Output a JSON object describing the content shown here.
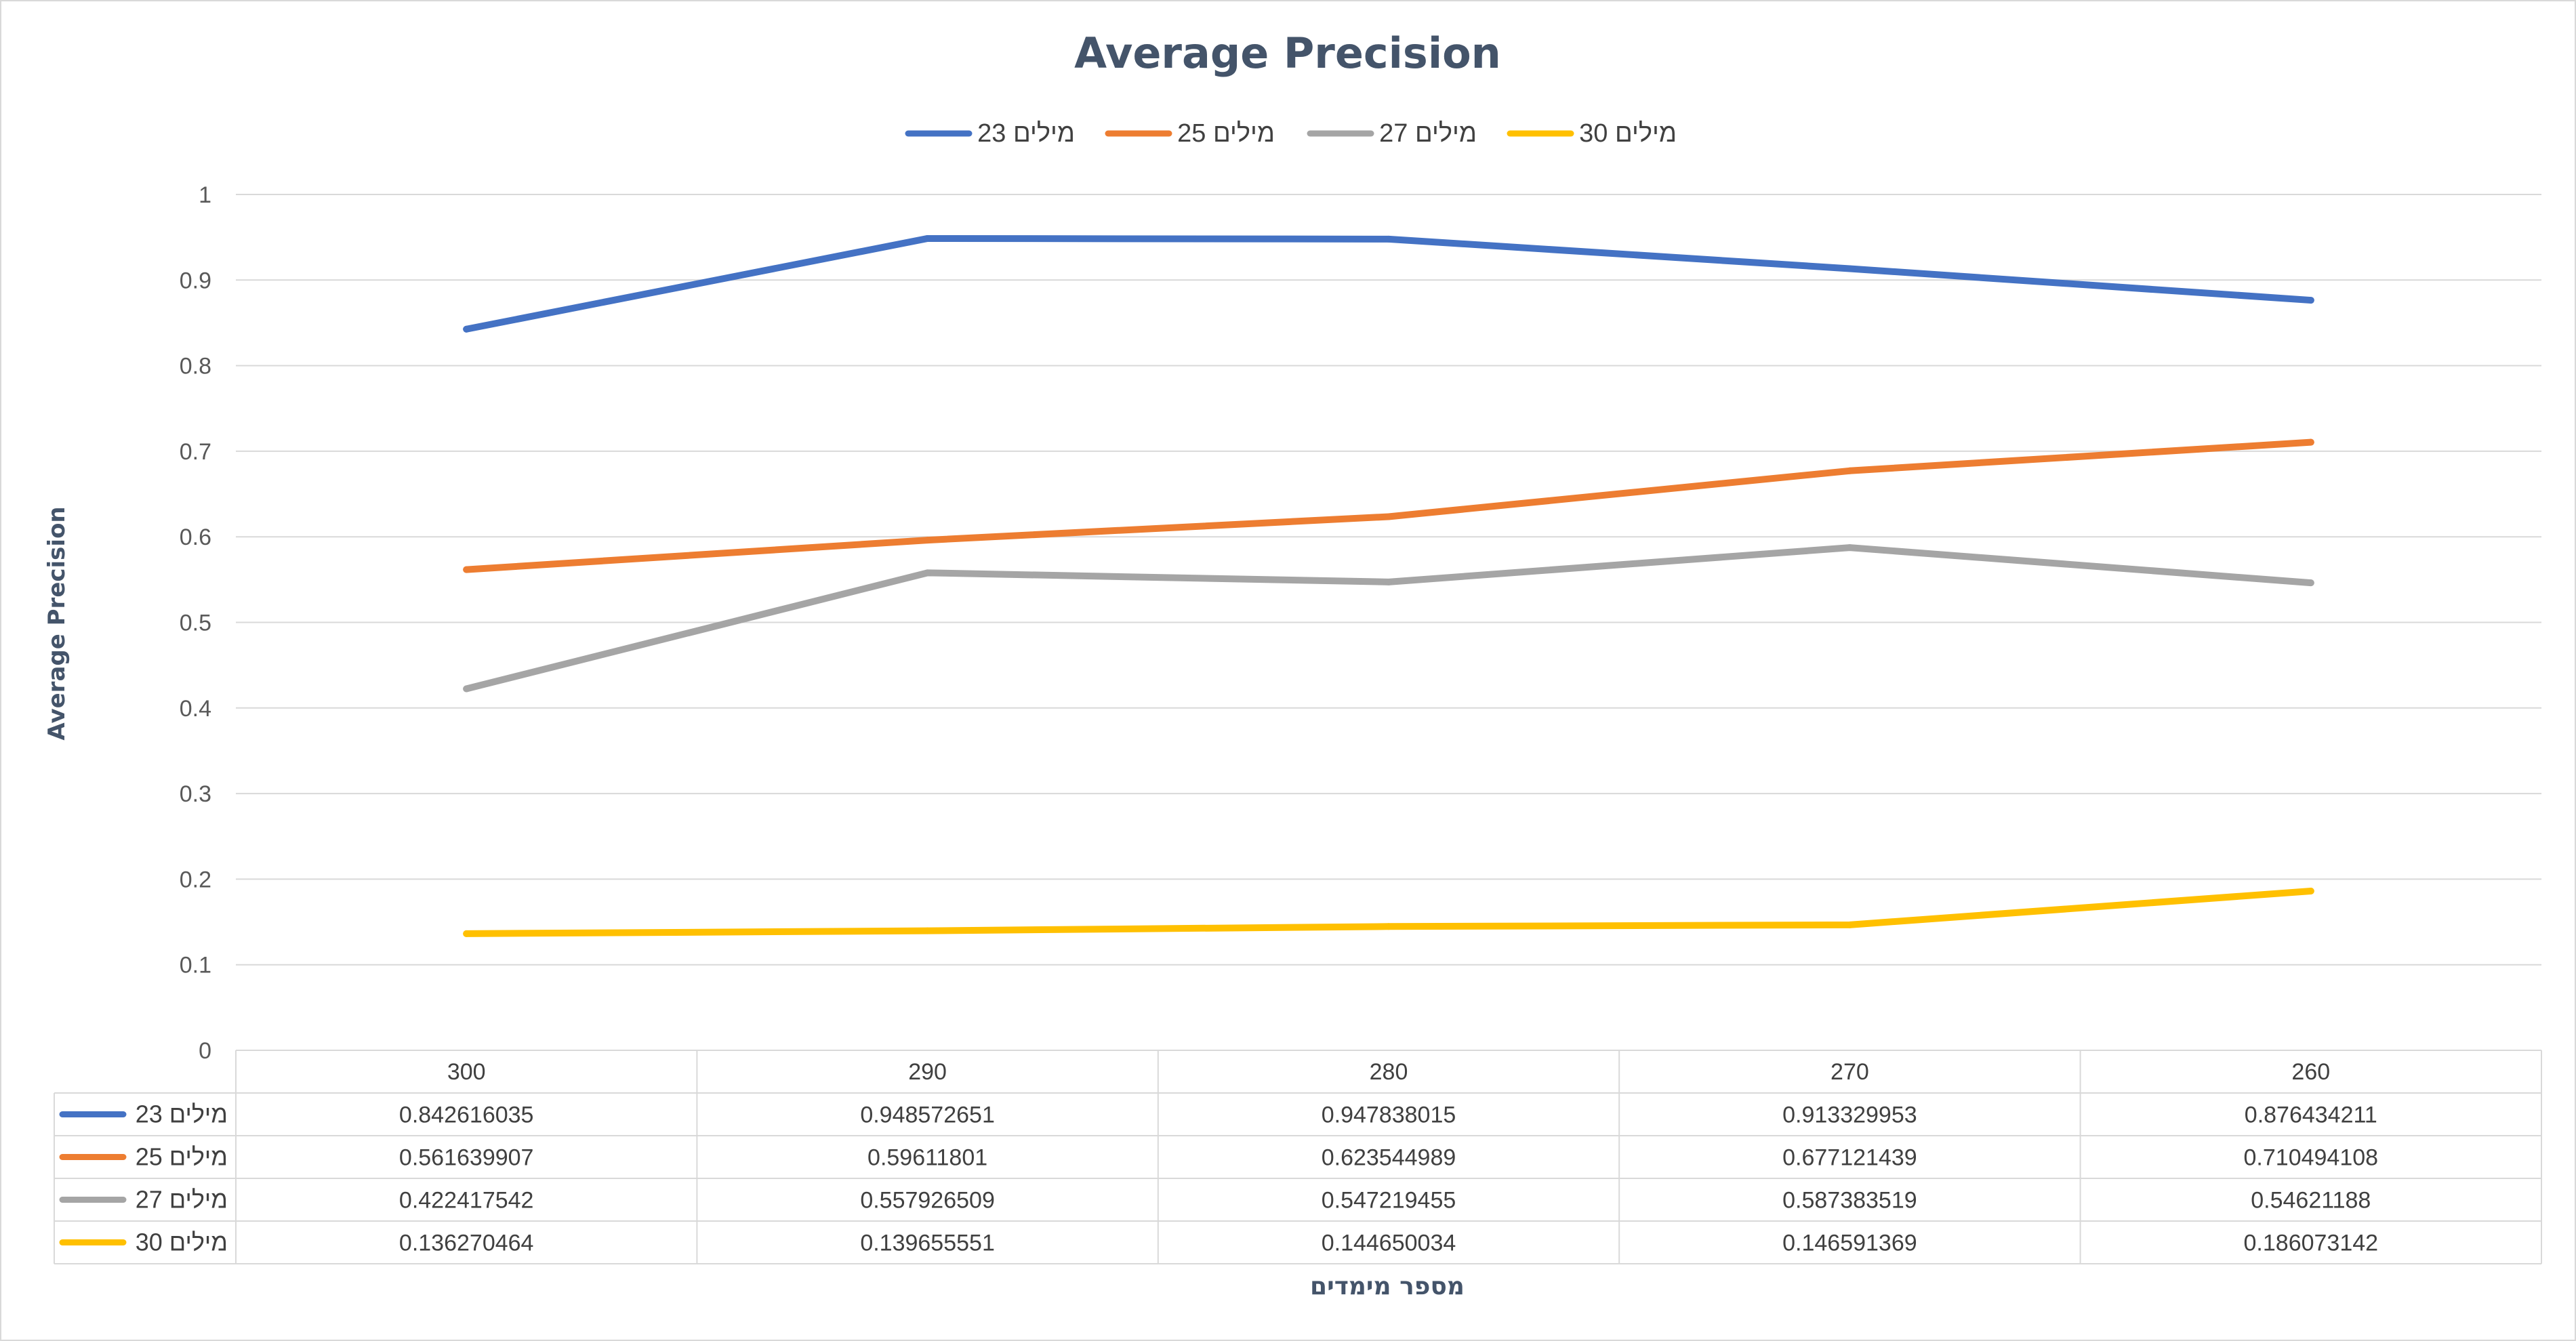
{
  "chart_data": {
    "type": "line",
    "title": "Average Precision",
    "ylabel": "Average Precision",
    "xlabel": "מספר מימדים",
    "ylim": [
      0,
      1
    ],
    "yticks": [
      "0",
      "0.1",
      "0.2",
      "0.3",
      "0.4",
      "0.5",
      "0.6",
      "0.7",
      "0.8",
      "0.9",
      "1"
    ],
    "categories": [
      "300",
      "290",
      "280",
      "270",
      "260"
    ],
    "grid": true,
    "legend_position": "top",
    "data_table": true,
    "series": [
      {
        "name": "23 מילים",
        "color": "#4472C4",
        "values": [
          0.842616035,
          0.948572651,
          0.947838015,
          0.913329953,
          0.876434211
        ],
        "labels": [
          "0.842616035",
          "0.948572651",
          "0.947838015",
          "0.913329953",
          "0.876434211"
        ]
      },
      {
        "name": "25 מילים",
        "color": "#ED7D31",
        "values": [
          0.561639907,
          0.59611801,
          0.623544989,
          0.677121439,
          0.710494108
        ],
        "labels": [
          "0.561639907",
          "0.59611801",
          "0.623544989",
          "0.677121439",
          "0.710494108"
        ]
      },
      {
        "name": "27 מילים",
        "color": "#A5A5A5",
        "values": [
          0.422417542,
          0.557926509,
          0.547219455,
          0.587383519,
          0.54621188
        ],
        "labels": [
          "0.422417542",
          "0.557926509",
          "0.547219455",
          "0.587383519",
          "0.54621188"
        ]
      },
      {
        "name": "30 מילים",
        "color": "#FFC000",
        "values": [
          0.136270464,
          0.139655551,
          0.144650034,
          0.146591369,
          0.186073142
        ],
        "labels": [
          "0.136270464",
          "0.139655551",
          "0.144650034",
          "0.146591369",
          "0.186073142"
        ]
      }
    ]
  }
}
